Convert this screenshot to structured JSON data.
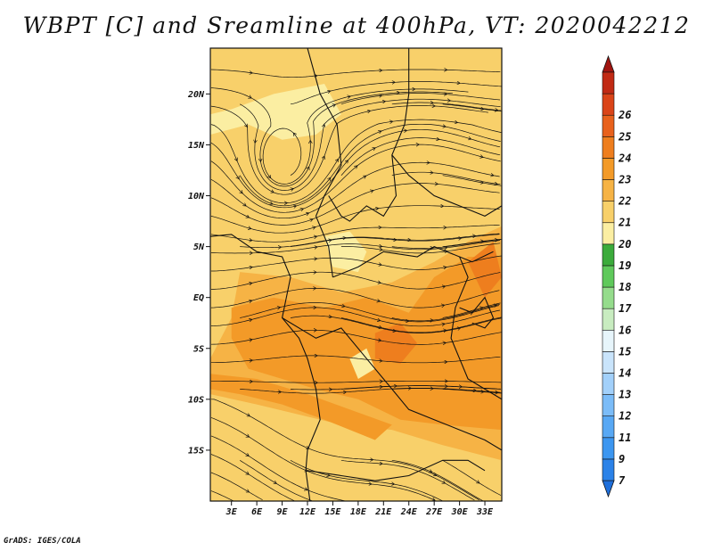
{
  "title": "WBPT [C] and Sreamline at 400hPa, VT: 2020042212",
  "credit": "GrADS: IGES/COLA",
  "chart_data": {
    "type": "heatmap",
    "title": "WBPT [C] and Sreamline at 400hPa, VT: 2020042212",
    "variable": "Wet-bulb potential temperature (C) with streamlines at 400 hPa",
    "x_axis": {
      "ticks": [
        3,
        6,
        9,
        12,
        15,
        18,
        21,
        24,
        27,
        30,
        33
      ],
      "tick_labels": [
        "3E",
        "6E",
        "9E",
        "12E",
        "15E",
        "18E",
        "21E",
        "24E",
        "27E",
        "30E",
        "33E"
      ],
      "range": [
        0.5,
        35
      ]
    },
    "y_axis": {
      "ticks": [
        20,
        15,
        10,
        5,
        0,
        -5,
        -10,
        -15
      ],
      "tick_labels": [
        "20N",
        "15N",
        "10N",
        "5N",
        "EQ",
        "5S",
        "10S",
        "15S"
      ],
      "range": [
        -20,
        24.5
      ]
    },
    "colorbar": {
      "levels": [
        7,
        9,
        11,
        12,
        13,
        14,
        15,
        16,
        17,
        18,
        19,
        20,
        21,
        22,
        23,
        24,
        25,
        26
      ],
      "level_labels": [
        "7",
        "9",
        "11",
        "12",
        "13",
        "14",
        "15",
        "16",
        "17",
        "18",
        "19",
        "20",
        "21",
        "22",
        "23",
        "24",
        "25",
        "26"
      ],
      "colors": [
        "#1e6fdb",
        "#2b82e8",
        "#3c96f0",
        "#58a8f4",
        "#7bbcf8",
        "#a2d0fa",
        "#c9e4fb",
        "#e7f5fb",
        "#c8ecc0",
        "#95dc8c",
        "#5fc95b",
        "#3bab3b",
        "#fbeea2",
        "#f8d06a",
        "#f6b345",
        "#f39a28",
        "#ee7e1e",
        "#e8611c",
        "#da4418",
        "#c12a14",
        "#a11510"
      ],
      "extend": "both"
    },
    "dominant_range": [
      19,
      23
    ],
    "features": [
      "cyclonic circulation centered near 9E 13N",
      "warm band 22-23C along equator and 5S to 10S"
    ]
  }
}
